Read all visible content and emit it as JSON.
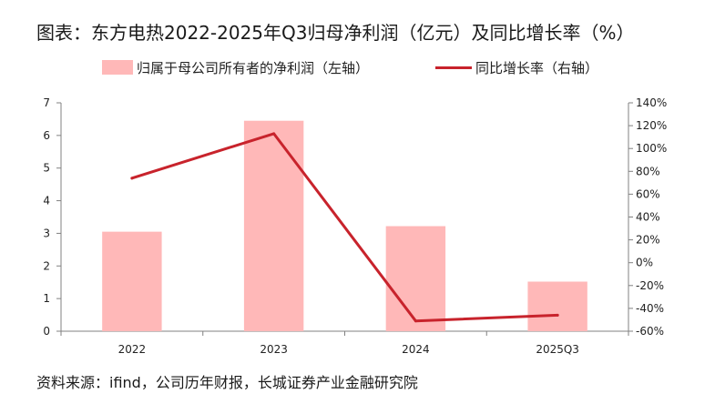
{
  "chart_data": {
    "type": "bar",
    "title": "图表：东方电热2022-2025年Q3归母净利润（亿元）及同比增长率（%）",
    "categories": [
      "2022",
      "2023",
      "2024",
      "2025Q3"
    ],
    "series": [
      {
        "name": "归属于母公司所有者的净利润（左轴）",
        "type": "bar",
        "axis": "left",
        "values": [
          3.05,
          6.45,
          3.22,
          1.52
        ]
      },
      {
        "name": "同比增长率（右轴）",
        "type": "line",
        "axis": "right",
        "values": [
          74,
          113,
          -51,
          -46
        ]
      }
    ],
    "y_left": {
      "ylim": [
        0,
        7
      ],
      "ticks": [
        "0",
        "1",
        "2",
        "3",
        "4",
        "5",
        "6",
        "7"
      ]
    },
    "y_right": {
      "ylim": [
        -60,
        140
      ],
      "ticks": [
        "-60%",
        "-40%",
        "-20%",
        "0%",
        "20%",
        "40%",
        "60%",
        "80%",
        "100%",
        "120%",
        "140%"
      ]
    },
    "grid": false,
    "legend_position": "top",
    "colors": {
      "bar": "#ffb8b8",
      "line": "#c8232c",
      "axis": "#808080"
    },
    "source": "资料来源：ifind，公司历年财报，长城证券产业金融研究院"
  }
}
